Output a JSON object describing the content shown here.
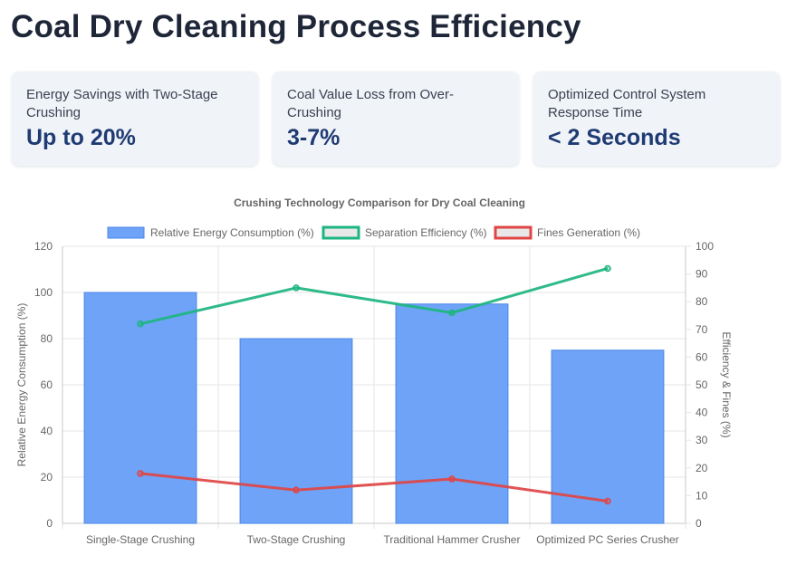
{
  "page": {
    "title": "Coal Dry Cleaning Process Efficiency"
  },
  "stats": [
    {
      "label": "Energy Savings with Two-Stage Crushing",
      "value": "Up to 20%"
    },
    {
      "label": "Coal Value Loss from Over-Crushing",
      "value": "3-7%"
    },
    {
      "label": "Optimized Control System Response Time",
      "value": "< 2 Seconds"
    }
  ],
  "chart_data": {
    "type": "bar",
    "title": "Crushing Technology Comparison for Dry Coal Cleaning",
    "categories": [
      "Single-Stage Crushing",
      "Two-Stage Crushing",
      "Traditional Hammer Crusher",
      "Optimized PC Series Crusher"
    ],
    "series": [
      {
        "name": "Relative Energy Consumption (%)",
        "type": "bar",
        "axis": "left",
        "values": [
          100,
          80,
          95,
          75
        ],
        "color": "#6fa3f7",
        "border": "#4a86e8"
      },
      {
        "name": "Separation Efficiency (%)",
        "type": "line",
        "axis": "right",
        "values": [
          72,
          85,
          76,
          92
        ],
        "color": "#1db57f"
      },
      {
        "name": "Fines Generation (%)",
        "type": "line",
        "axis": "right",
        "values": [
          18,
          12,
          16,
          8
        ],
        "color": "#e04545"
      }
    ],
    "ylabel": "Relative Energy Consumption (%)",
    "y2label": "Efficiency & Fines (%)",
    "ylim": [
      0,
      120
    ],
    "y2lim": [
      0,
      100
    ],
    "yticks": [
      0,
      20,
      40,
      60,
      80,
      100,
      120
    ],
    "y2ticks": [
      0,
      10,
      20,
      30,
      40,
      50,
      60,
      70,
      80,
      90,
      100
    ],
    "grid": true,
    "legend": "top-center"
  }
}
